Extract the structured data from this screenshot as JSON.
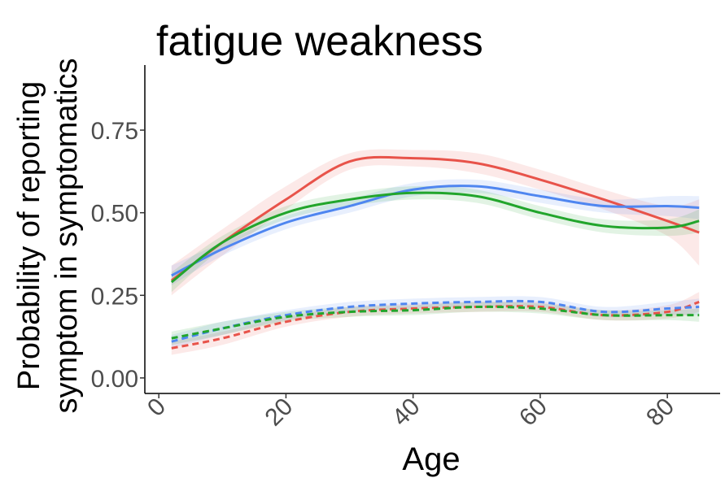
{
  "chart_data": {
    "type": "line",
    "title": "fatigue weakness",
    "xlabel": "Age",
    "ylabel": [
      "Probability of reporting",
      "symptom in symptomatics"
    ],
    "x": [
      2,
      10,
      20,
      30,
      40,
      50,
      60,
      70,
      80,
      85
    ],
    "xlim": [
      -2.2,
      88.3
    ],
    "xticks": [
      0,
      20,
      40,
      60,
      80
    ],
    "ylim": [
      -0.047,
      0.947
    ],
    "yticks": [
      {
        "value": 0,
        "label": "0.00"
      },
      {
        "value": 0.25,
        "label": "0.25"
      },
      {
        "value": 0.5,
        "label": "0.50"
      },
      {
        "value": 0.75,
        "label": "0.75"
      }
    ],
    "grid": false,
    "series": [
      {
        "color": "#e8534a",
        "linestyle": "solid",
        "values": [
          0.295,
          0.41,
          0.54,
          0.655,
          0.665,
          0.65,
          0.6,
          0.54,
          0.475,
          0.44
        ],
        "lower": [
          0.25,
          0.37,
          0.51,
          0.63,
          0.64,
          0.62,
          0.57,
          0.51,
          0.43,
          0.34
        ],
        "upper": [
          0.34,
          0.45,
          0.58,
          0.68,
          0.69,
          0.68,
          0.63,
          0.57,
          0.52,
          0.54
        ]
      },
      {
        "color": "#4f86f0",
        "linestyle": "solid",
        "values": [
          0.31,
          0.39,
          0.47,
          0.52,
          0.57,
          0.58,
          0.55,
          0.52,
          0.52,
          0.515
        ],
        "lower": [
          0.28,
          0.37,
          0.45,
          0.5,
          0.55,
          0.56,
          0.53,
          0.5,
          0.49,
          0.48
        ],
        "upper": [
          0.34,
          0.41,
          0.49,
          0.54,
          0.59,
          0.6,
          0.57,
          0.54,
          0.55,
          0.55
        ]
      },
      {
        "color": "#22a52c",
        "linestyle": "solid",
        "values": [
          0.29,
          0.41,
          0.5,
          0.54,
          0.56,
          0.55,
          0.5,
          0.46,
          0.455,
          0.475
        ],
        "lower": [
          0.26,
          0.39,
          0.48,
          0.52,
          0.54,
          0.53,
          0.48,
          0.44,
          0.43,
          0.44
        ],
        "upper": [
          0.32,
          0.43,
          0.52,
          0.56,
          0.58,
          0.57,
          0.52,
          0.48,
          0.48,
          0.51
        ]
      },
      {
        "color": "#e8534a",
        "linestyle": "dashed",
        "values": [
          0.09,
          0.12,
          0.17,
          0.2,
          0.21,
          0.215,
          0.215,
          0.19,
          0.2,
          0.23
        ],
        "lower": [
          0.07,
          0.1,
          0.155,
          0.185,
          0.195,
          0.2,
          0.2,
          0.175,
          0.18,
          0.2
        ],
        "upper": [
          0.11,
          0.14,
          0.185,
          0.215,
          0.225,
          0.23,
          0.23,
          0.205,
          0.22,
          0.26
        ]
      },
      {
        "color": "#4f86f0",
        "linestyle": "dashed",
        "values": [
          0.11,
          0.15,
          0.19,
          0.215,
          0.225,
          0.23,
          0.23,
          0.2,
          0.21,
          0.215
        ],
        "lower": [
          0.09,
          0.13,
          0.175,
          0.2,
          0.21,
          0.215,
          0.215,
          0.185,
          0.19,
          0.19
        ],
        "upper": [
          0.13,
          0.17,
          0.205,
          0.23,
          0.24,
          0.245,
          0.245,
          0.215,
          0.23,
          0.24
        ]
      },
      {
        "color": "#22a52c",
        "linestyle": "dashed",
        "values": [
          0.12,
          0.15,
          0.185,
          0.2,
          0.205,
          0.215,
          0.21,
          0.19,
          0.19,
          0.19
        ],
        "lower": [
          0.1,
          0.13,
          0.17,
          0.185,
          0.19,
          0.2,
          0.195,
          0.175,
          0.175,
          0.17
        ],
        "upper": [
          0.14,
          0.17,
          0.2,
          0.215,
          0.22,
          0.23,
          0.225,
          0.205,
          0.205,
          0.21
        ]
      }
    ]
  }
}
